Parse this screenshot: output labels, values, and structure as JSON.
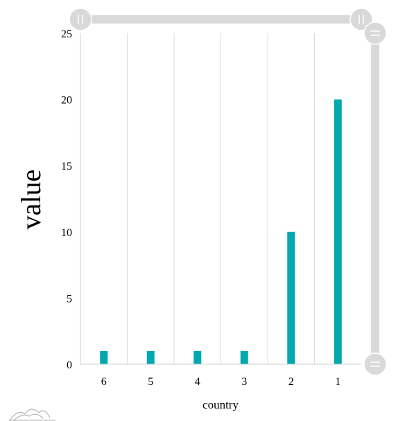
{
  "chart_data": {
    "type": "bar",
    "categories": [
      "6",
      "5",
      "4",
      "3",
      "2",
      "1"
    ],
    "values": [
      1,
      1,
      1,
      1,
      10,
      20
    ],
    "title": "",
    "xlabel": "country",
    "ylabel": "value",
    "ylim": [
      0,
      25
    ],
    "yticks": [
      "0",
      "5",
      "10",
      "15",
      "20",
      "25"
    ],
    "grid": "vertical",
    "bar_color": "#00a8b0"
  },
  "scrollbars": {
    "track_color": "#d9d9d9",
    "grip_color": "#d9d9d9"
  }
}
